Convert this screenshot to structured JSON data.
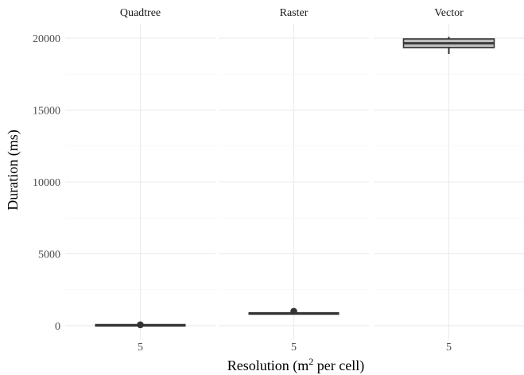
{
  "chart_data": {
    "type": "boxplot",
    "xlabel": "Resolution (m",
    "xlabel_sup": "2",
    "xlabel_suffix": " per cell)",
    "ylabel": "Duration (ms)",
    "ylim": [
      -1000,
      21000
    ],
    "yticks": [
      0,
      5000,
      10000,
      15000,
      20000
    ],
    "grid": true,
    "panels": [
      {
        "name": "Quadtree",
        "x_tick": "5",
        "box": {
          "min": 10,
          "q1": 20,
          "median": 25,
          "q3": 30,
          "max": 40,
          "outliers": [
            60
          ]
        }
      },
      {
        "name": "Raster",
        "x_tick": "5",
        "box": {
          "min": 820,
          "q1": 840,
          "median": 850,
          "q3": 860,
          "max": 880,
          "outliers": [
            1000
          ]
        }
      },
      {
        "name": "Vector",
        "x_tick": "5",
        "box": {
          "min": 18900,
          "q1": 19350,
          "median": 19650,
          "q3": 19950,
          "max": 20100,
          "outliers": []
        }
      }
    ]
  }
}
